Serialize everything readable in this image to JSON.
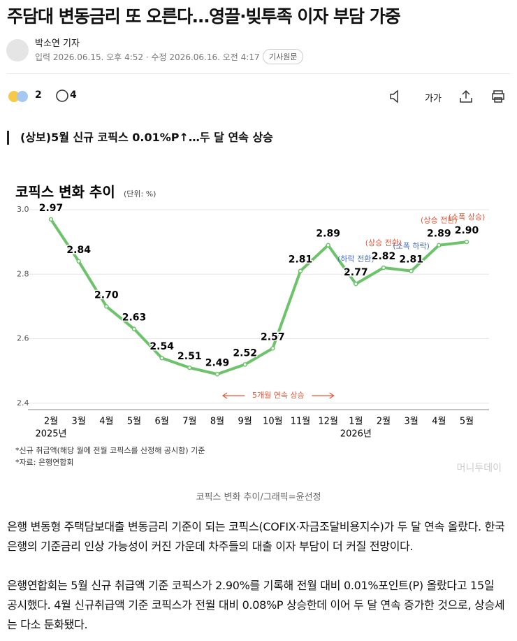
{
  "header": {
    "title": "주담대 변동금리 또 오른다…영끌·빚투족 이자 부담 가중",
    "reporter": "박소연 기자",
    "dates": "입력 2026.06.15. 오후 4:52 · 수정 2026.06.16. 오전 4:17",
    "original_button": "기사원문"
  },
  "toolbar": {
    "reactions": 2,
    "comments": 4,
    "font_size": "가가"
  },
  "subheading": "(상보)5월 신규 코픽스 0.01%P↑…두 달 연속 상승",
  "chart_data": {
    "type": "line",
    "title": "코픽스 변화 추이",
    "unit": "(단위: %)",
    "categories": [
      "2월",
      "3월",
      "4월",
      "5월",
      "6월",
      "7월",
      "8월",
      "9월",
      "10월",
      "11월",
      "12월",
      "1월",
      "2월",
      "3월",
      "4월",
      "5월"
    ],
    "year_labels": [
      "2025년",
      null,
      null,
      null,
      null,
      null,
      null,
      null,
      null,
      null,
      null,
      "2026년",
      null,
      null,
      null,
      null
    ],
    "values": [
      2.97,
      2.84,
      2.7,
      2.63,
      2.54,
      2.51,
      2.49,
      2.52,
      2.57,
      2.81,
      2.89,
      2.77,
      2.82,
      2.81,
      2.89,
      2.9
    ],
    "value_labels": [
      "2.97",
      "2.84",
      "2.70",
      "2.63",
      "2.54",
      "2.51",
      "2.49",
      "2.52",
      "2.57",
      "2.81",
      "2.89",
      "2.77",
      "2.82",
      "2.81",
      "2.89",
      "2.90"
    ],
    "notes": [
      null,
      null,
      null,
      null,
      null,
      null,
      null,
      null,
      null,
      null,
      null,
      {
        "text": "(하락 전환)",
        "color": "#4a6fc2"
      },
      {
        "text": "(상승 전환)",
        "color": "#e0593a"
      },
      {
        "text": "(소폭 하락)",
        "color": "#4a6fc2"
      },
      {
        "text": "(상승 전환)",
        "color": "#e0593a"
      },
      {
        "text": "(소폭 상승)",
        "color": "#e0593a"
      }
    ],
    "span_note": "5개월 연속 상승",
    "span_color": "#e0593a",
    "color": "#6cc36a",
    "ylim": [
      2.38,
      3.0
    ],
    "yticks": [
      {
        "value": 3.0,
        "label": "3.0"
      },
      2.8,
      2.6,
      2.4
    ],
    "grid": true,
    "footnotes": [
      "*신규 취급액(해당 월에 전월 코픽스를 산정해 공시함) 기준",
      "*자료: 은행연합회"
    ],
    "watermark": "머니투데이"
  },
  "caption": "코픽스 변화 추이/그래픽=윤선정",
  "paragraphs": [
    "은행 변동형 주택담보대출 변동금리 기준이 되는 코픽스(COFIX·자금조달비용지수)가 두 달 연속 올랐다. 한국은행의 기준금리 인상 가능성이 커진 가운데 차주들의 대출 이자 부담이 더 커질 전망이다.",
    "은행연합회는 5월 신규 취급액 기준 코픽스가 2.90%를 기록해 전월 대비 0.01%포인트(P) 올랐다고 15일 공시했다. 4월 신규취급액 기준 코픽스가 전월 대비 0.08%P 상승한데 이어 두 달 연속 증가한 것으로, 상승세는 다소 둔화됐다."
  ]
}
